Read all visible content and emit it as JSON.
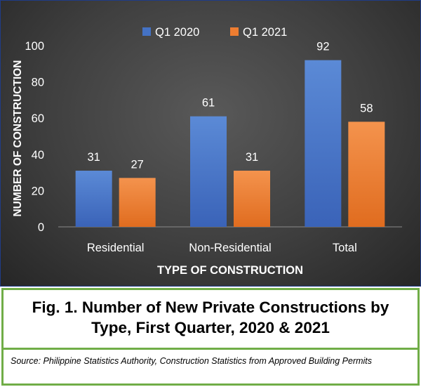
{
  "chart_data": {
    "type": "bar",
    "categories": [
      "Residential",
      "Non-Residential",
      "Total"
    ],
    "series": [
      {
        "name": "Q1 2020",
        "values": [
          31,
          61,
          92
        ],
        "color": "#4472c4"
      },
      {
        "name": "Q1 2021",
        "values": [
          27,
          31,
          58
        ],
        "color": "#ed7d31"
      }
    ],
    "xlabel": "TYPE OF CONSTRUCTION",
    "ylabel": "NUMBER OF CONSTRUCTION",
    "ylim": [
      0,
      100
    ],
    "yticks": [
      0,
      20,
      40,
      60,
      80,
      100
    ],
    "legend": "top-center",
    "grid": false
  },
  "caption": {
    "title_line1": "Fig. 1. Number of New Private Constructions by",
    "title_line2": "Type, First Quarter, 2020 & 2021",
    "source": "Source: Philippine Statistics Authority, Construction Statistics from Approved Building Permits"
  },
  "colors": {
    "panel_border": "#1f3c88",
    "caption_border": "#70ad47"
  }
}
